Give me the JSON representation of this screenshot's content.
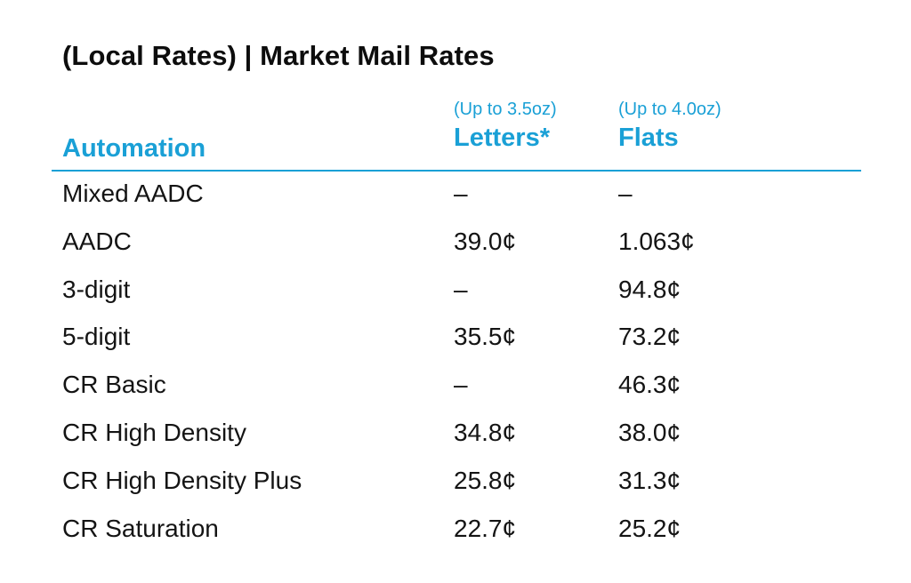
{
  "title": "(Local Rates) | Market Mail Rates",
  "header": {
    "category_label": "Automation",
    "letters_sub": "(Up to 3.5oz)",
    "letters_label": "Letters*",
    "flats_sub": "(Up to 4.0oz)",
    "flats_label": "Flats"
  },
  "accent_color": "#1aa0d6",
  "rows": [
    {
      "name": "Mixed AADC",
      "letters": "–",
      "flats": "–"
    },
    {
      "name": "AADC",
      "letters": "39.0¢",
      "flats": "1.063¢"
    },
    {
      "name": "3-digit",
      "letters": "–",
      "flats": "94.8¢"
    },
    {
      "name": "5-digit",
      "letters": "35.5¢",
      "flats": "73.2¢"
    },
    {
      "name": "CR Basic",
      "letters": "–",
      "flats": "46.3¢"
    },
    {
      "name": "CR High Density",
      "letters": "34.8¢",
      "flats": "38.0¢"
    },
    {
      "name": "CR High Density Plus",
      "letters": "25.8¢",
      "flats": "31.3¢"
    },
    {
      "name": "CR Saturation",
      "letters": "22.7¢",
      "flats": "25.2¢"
    }
  ]
}
